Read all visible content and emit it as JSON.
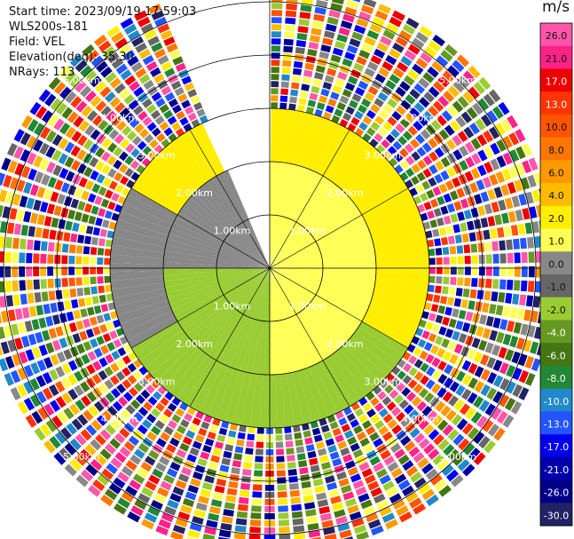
{
  "info": {
    "start_time": "Start time: 2023/09/19 17:59:03",
    "instrument": "WLS200s-181",
    "field": "Field: VEL",
    "elevation": "Elevation(deg): 35.30",
    "nrays": "NRays: 113"
  },
  "colorbar": {
    "unit": "m/s",
    "ticks": [
      "26.0",
      "21.0",
      "17.0",
      "13.0",
      "10.0",
      "8.0",
      "6.0",
      "4.0",
      "2.0",
      "1.0",
      "0.0",
      "-1.0",
      "-2.0",
      "-4.0",
      "-6.0",
      "-8.0",
      "-10.0",
      "-13.0",
      "-17.0",
      "-21.0",
      "-26.0",
      "-30.0"
    ],
    "colors": [
      "#ff55aa",
      "#ff2288",
      "#ee0000",
      "#ff3300",
      "#ff5500",
      "#ff7700",
      "#ff9900",
      "#ffbb00",
      "#ffee00",
      "#ffff55",
      "#888888",
      "#666666",
      "#99cc33",
      "#669922",
      "#447711",
      "#228833",
      "#2288cc",
      "#2255ff",
      "#0000ee",
      "#0000aa",
      "#000088",
      "#222266"
    ]
  },
  "chart_data": {
    "type": "polar-scan",
    "field": "VEL",
    "units": "m/s",
    "range_rings_km": [
      1.0,
      2.0,
      3.0,
      4.0,
      5.0
    ],
    "ring_labels": [
      "1.00km",
      "2.00km",
      "3.00km",
      "4.00km",
      "5.00km"
    ],
    "nrays": 113,
    "elevation_deg": 35.3,
    "gap_azimuth_deg": [
      335,
      360
    ],
    "velocity_regions": [
      {
        "range_km": [
          0.0,
          2.0
        ],
        "azimuth_deg": [
          0,
          180
        ],
        "velocity_ms": 0.5
      },
      {
        "range_km": [
          0.0,
          2.0
        ],
        "azimuth_deg": [
          180,
          270
        ],
        "velocity_ms": -2.0
      },
      {
        "range_km": [
          0.0,
          2.0
        ],
        "azimuth_deg": [
          270,
          360
        ],
        "velocity_ms": -0.5
      },
      {
        "range_km": [
          2.0,
          3.0
        ],
        "azimuth_deg": [
          300,
          60
        ],
        "velocity_ms": 2.5
      },
      {
        "range_km": [
          2.0,
          3.0
        ],
        "azimuth_deg": [
          60,
          120
        ],
        "velocity_ms": 1.5
      },
      {
        "range_km": [
          2.0,
          3.0
        ],
        "azimuth_deg": [
          120,
          240
        ],
        "velocity_ms": -2.5
      },
      {
        "range_km": [
          2.0,
          3.0
        ],
        "azimuth_deg": [
          240,
          300
        ],
        "velocity_ms": -0.5
      },
      {
        "range_km": [
          3.0,
          5.4
        ],
        "azimuth_deg": [
          0,
          360
        ],
        "velocity_ms": "noise"
      }
    ]
  }
}
